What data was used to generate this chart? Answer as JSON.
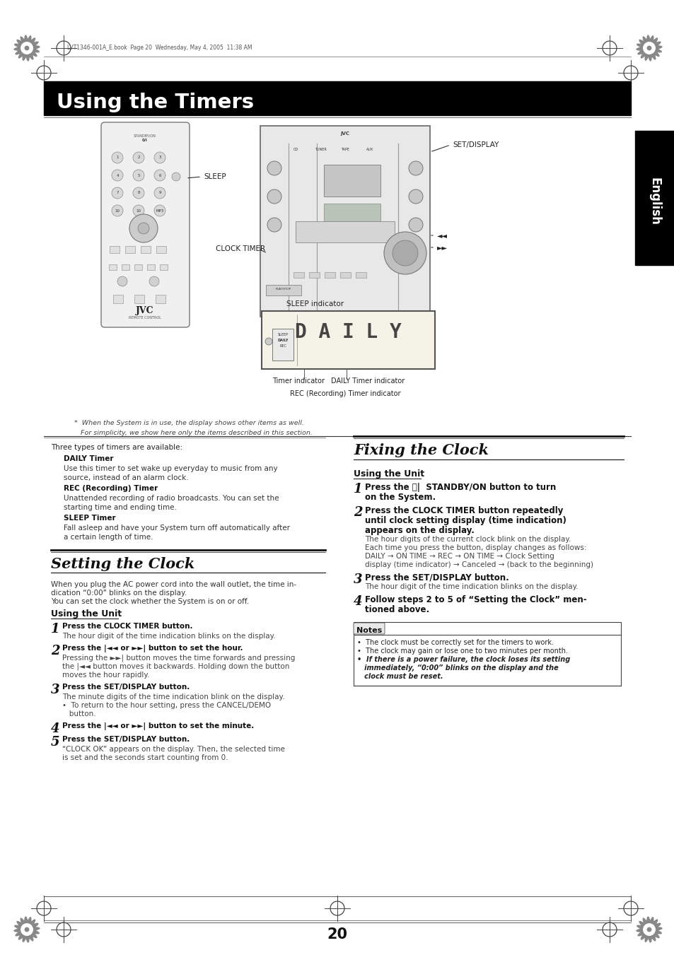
{
  "page_bg": "#ffffff",
  "header_text": "LVT1346-001A_E.book  Page 20  Wednesday, May 4, 2005  11:38 AM",
  "title_bar_text": "Using the Timers",
  "title_bar_bg": "#000000",
  "title_bar_fg": "#ffffff",
  "english_tab_text": "English",
  "english_tab_bg": "#000000",
  "english_tab_fg": "#ffffff",
  "section1_title": "Setting the Clock",
  "section2_title": "Fixing the Clock",
  "page_number": "20",
  "footnote_line1": "*  When the System is in use, the display shows other items as well.",
  "footnote_line2": "   For simplicity, we show here only the items described in this section.",
  "left_intro": "Three types of timers are available:",
  "timer_types": [
    {
      "bold": "DAILY Timer",
      "text": "Use this timer to set wake up everyday to music from any\nsource, instead of an alarm clock."
    },
    {
      "bold": "REC (Recording) Timer",
      "text": "Unattended recording of radio broadcasts. You can set the\nstarting time and ending time."
    },
    {
      "bold": "SLEEP Timer",
      "text": "Fall asleep and have your System turn off automatically after\na certain length of time."
    }
  ],
  "setting_clock_intro_line1": "When you plug the AC power cord into the wall outlet, the time in-",
  "setting_clock_intro_line2": "dication “0:00” blinks on the display.",
  "setting_clock_intro_line3": "You can set the clock whether the System is on or off.",
  "using_unit_label": "Using the Unit",
  "setting_steps": [
    {
      "num": "1",
      "bold": "Press the CLOCK TIMER button.",
      "body": [
        "The hour digit of the time indication blinks on the display."
      ]
    },
    {
      "num": "2",
      "bold": "Press the |◄◄ or ►►| button to set the hour.",
      "body": [
        "Pressing the ►►| button moves the time forwards and pressing",
        "the |◄◄ button moves it backwards. Holding down the button",
        "moves the hour rapidly."
      ]
    },
    {
      "num": "3",
      "bold": "Press the SET/DISPLAY button.",
      "body": [
        "The minute digits of the time indication blink on the display.",
        "•  To return to the hour setting, press the CANCEL/DEMO",
        "   button."
      ]
    },
    {
      "num": "4",
      "bold": "Press the |◄◄ or ►►| button to set the minute.",
      "body": []
    },
    {
      "num": "5",
      "bold": "Press the SET/DISPLAY button.",
      "body": [
        "“CLOCK OK” appears on the display. Then, the selected time",
        "is set and the seconds start counting from 0."
      ]
    }
  ],
  "fixing_using_unit_label": "Using the Unit",
  "fixing_steps": [
    {
      "num": "1",
      "bold": "Press the ⏻|  STANDBY/ON button to turn",
      "bold2": "on the System.",
      "body": []
    },
    {
      "num": "2",
      "bold": "Press the CLOCK TIMER button repeatedly",
      "bold2": "until clock setting display (time indication)",
      "bold3": "appears on the display.",
      "body": [
        "The hour digits of the current clock blink on the display.",
        "Each time you press the button, display changes as follows:",
        "DAILY → ON TIME → REC → ON TIME → Clock Setting",
        "display (time indicator) → Canceled → (back to the beginning)"
      ]
    },
    {
      "num": "3",
      "bold": "Press the SET/DISPLAY button.",
      "body": [
        "The hour digit of the time indication blinks on the display."
      ]
    },
    {
      "num": "4",
      "bold": "Follow steps 2 to 5 of “Setting the Clock” men-",
      "bold2": "tioned above.",
      "body": []
    }
  ],
  "notes_title": "Notes",
  "notes": [
    "•  The clock must be correctly set for the timers to work.",
    "•  The clock may gain or lose one to two minutes per month.",
    "•  If there is a power failure, the clock loses its setting",
    "   immediately, “0:00” blinks on the display and the",
    "   clock must be reset."
  ],
  "notes_italic": [
    false,
    false,
    true,
    true,
    true
  ],
  "notes_bold": [
    false,
    false,
    true,
    true,
    true
  ],
  "sleep_label": "SLEEP",
  "clock_timer_label": "CLOCK TIMER",
  "set_display_label": "SET/DISPLAY",
  "sleep_indicator_label": "SLEEP indicator",
  "timer_indicator_label": "Timer indicator",
  "daily_timer_indicator_label": "DAILY Timer indicator",
  "rec_timer_indicator_label": "REC (Recording) Timer indicator"
}
